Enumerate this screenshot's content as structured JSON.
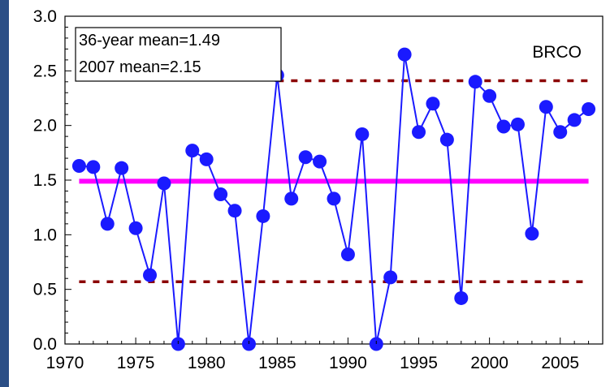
{
  "chart_data": {
    "type": "line",
    "series_label": "BRCO",
    "annotations": [
      "36-year mean=1.49",
      "2007 mean=2.15"
    ],
    "xlim": [
      1970,
      2008
    ],
    "ylim": [
      0,
      3.0
    ],
    "x_ticks": [
      1970,
      1975,
      1980,
      1985,
      1990,
      1995,
      2000,
      2005
    ],
    "y_ticks": [
      "0.0",
      "0.5",
      "1.0",
      "1.5",
      "2.0",
      "2.5",
      "3.0"
    ],
    "grid": false,
    "series": [
      {
        "color": "#1a1aff",
        "x": [
          1971,
          1972,
          1973,
          1974,
          1975,
          1976,
          1977,
          1978,
          1979,
          1980,
          1981,
          1982,
          1983,
          1984,
          1985,
          1986,
          1987,
          1988,
          1989,
          1990,
          1991,
          1992,
          1993,
          1994,
          1995,
          1996,
          1997,
          1998,
          1999,
          2000,
          2001,
          2002,
          2003,
          2004,
          2005,
          2006,
          2007
        ],
        "values": [
          1.63,
          1.62,
          1.1,
          1.61,
          1.06,
          0.63,
          1.47,
          0.0,
          1.77,
          1.69,
          1.37,
          1.22,
          0.0,
          1.17,
          2.46,
          1.33,
          1.71,
          1.67,
          1.33,
          0.82,
          1.92,
          0.0,
          0.61,
          2.65,
          1.94,
          2.2,
          1.87,
          0.42,
          2.4,
          2.27,
          1.99,
          2.01,
          1.01,
          2.17,
          1.94,
          2.05,
          2.15
        ]
      }
    ],
    "reference_lines": [
      {
        "kind": "mean",
        "y": 1.49,
        "color": "#ff00ff",
        "style": "solid",
        "x_range": [
          1971,
          2007
        ]
      },
      {
        "kind": "upper",
        "y": 2.41,
        "color": "#8b0000",
        "style": "dotted",
        "x_range": [
          1985,
          2007
        ]
      },
      {
        "kind": "lower",
        "y": 0.57,
        "color": "#8b0000",
        "style": "dotted",
        "x_range": [
          1971,
          2007
        ]
      }
    ]
  }
}
